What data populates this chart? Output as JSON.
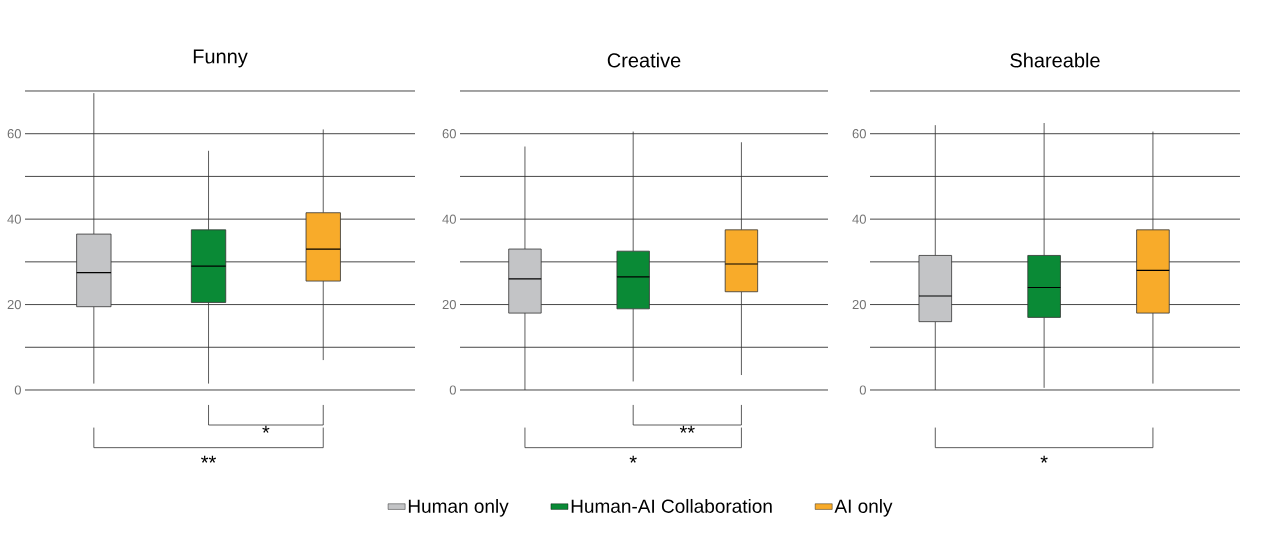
{
  "chart_data": [
    {
      "type": "box",
      "title": "Funny",
      "categories": [
        null,
        null,
        null
      ],
      "ylim": [
        0,
        70
      ],
      "yticks": [
        0,
        {
          "value": 10,
          "label": null
        },
        20,
        {
          "value": 30,
          "label": null
        },
        40,
        {
          "value": 50,
          "label": null
        },
        60,
        {
          "value": 70,
          "label": null
        }
      ],
      "grid": "y",
      "tick_labels": "y",
      "legend": "bottom",
      "series": [
        {
          "name": "Human only",
          "color": "#c3c4c6",
          "boxes": [
            {
              "low": 1.5,
              "q1": 19.5,
              "median": 27.5,
              "q3": 36.5,
              "high": 69.5
            },
            null,
            null
          ]
        },
        {
          "name": "Human-AI Collaboration",
          "color": "#0a8a36",
          "boxes": [
            null,
            {
              "low": 1.5,
              "q1": 20.5,
              "median": 29,
              "q3": 37.5,
              "high": 56
            },
            null
          ]
        },
        {
          "name": "AI only",
          "color": "#f8ab2a",
          "boxes": [
            null,
            null,
            {
              "low": 7,
              "q1": 25.5,
              "median": 33,
              "q3": 41.5,
              "high": 61
            }
          ]
        }
      ],
      "annotations": [
        "*",
        "**"
      ]
    },
    {
      "type": "box",
      "title": "Creative",
      "categories": [
        null,
        null,
        null
      ],
      "ylim": [
        0,
        70
      ],
      "yticks": [
        0,
        {
          "value": 10,
          "label": null
        },
        20,
        {
          "value": 30,
          "label": null
        },
        40,
        {
          "value": 50,
          "label": null
        },
        60,
        {
          "value": 70,
          "label": null
        }
      ],
      "grid": "y",
      "tick_labels": "y",
      "series": [
        {
          "color": "#c3c4c6",
          "boxes": [
            {
              "low": 0,
              "q1": 18,
              "median": 26,
              "q3": 33,
              "high": 57
            },
            null,
            null
          ]
        },
        {
          "color": "#0a8a36",
          "boxes": [
            null,
            {
              "low": 2,
              "q1": 19,
              "median": 26.5,
              "q3": 32.5,
              "high": 60.5
            },
            null
          ]
        },
        {
          "color": "#f8ab2a",
          "boxes": [
            null,
            null,
            {
              "low": 3.5,
              "q1": 23,
              "median": 29.5,
              "q3": 37.5,
              "high": 58
            }
          ]
        }
      ],
      "annotations": [
        "**",
        "*"
      ]
    },
    {
      "type": "box",
      "title": "Shareable",
      "categories": [
        null,
        null,
        null
      ],
      "ylim": [
        0,
        70
      ],
      "yticks": [
        0,
        {
          "value": 10,
          "label": null
        },
        20,
        {
          "value": 30,
          "label": null
        },
        40,
        {
          "value": 50,
          "label": null
        },
        60,
        {
          "value": 70,
          "label": null
        }
      ],
      "grid": "y",
      "tick_labels": "y",
      "series": [
        {
          "color": "#c3c4c6",
          "boxes": [
            {
              "low": 0,
              "q1": 16,
              "median": 22,
              "q3": 31.5,
              "high": 62
            },
            null,
            null
          ]
        },
        {
          "color": "#0a8a36",
          "boxes": [
            null,
            {
              "low": 0.5,
              "q1": 17,
              "median": 24,
              "q3": 31.5,
              "high": 62.5
            },
            null
          ]
        },
        {
          "color": "#f8ab2a",
          "boxes": [
            null,
            null,
            {
              "low": 1.5,
              "q1": 18,
              "median": 28,
              "q3": 37.5,
              "high": 60.5
            }
          ]
        }
      ],
      "annotations": [
        "*"
      ]
    }
  ]
}
